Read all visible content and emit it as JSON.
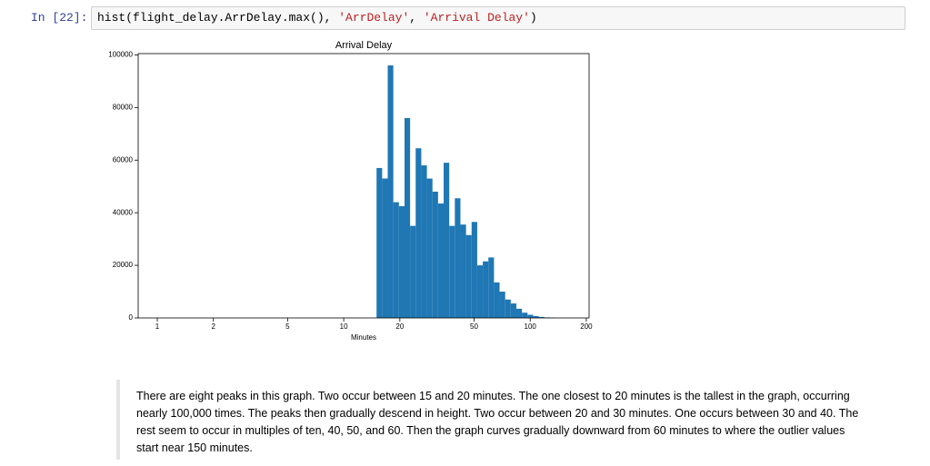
{
  "cell": {
    "prompt": "In [22]:",
    "code": [
      {
        "text": "hist(flight_delay.ArrDelay.max(), ",
        "kind": "plain"
      },
      {
        "text": "'ArrDelay'",
        "kind": "string"
      },
      {
        "text": ", ",
        "kind": "plain"
      },
      {
        "text": "'Arrival Delay'",
        "kind": "string"
      },
      {
        "text": ")",
        "kind": "plain"
      }
    ]
  },
  "chart_data": {
    "type": "histogram",
    "title": "Arrival Delay",
    "x_label": "Minutes",
    "color": "#1f77b4",
    "x_scale": "log",
    "bins": [
      15,
      16.07,
      17.22,
      18.45,
      19.77,
      21.19,
      22.7,
      24.32,
      26.06,
      27.93,
      29.92,
      32.06,
      34.35,
      36.81,
      39.44,
      42.26,
      45.28,
      48.52,
      51.99,
      55.7,
      59.69,
      63.95,
      68.53,
      73.43,
      78.68,
      84.3,
      90.33,
      96.79,
      103.7,
      111.1,
      119.1,
      127.6,
      136.7
    ],
    "counts": [
      57000,
      53000,
      96000,
      44000,
      42500,
      76000,
      35000,
      64500,
      58000,
      53000,
      48000,
      43500,
      59000,
      35000,
      45500,
      35500,
      31500,
      36500,
      20000,
      21500,
      23000,
      13500,
      10000,
      7000,
      5500,
      3500,
      2000,
      1200,
      700,
      400,
      200,
      100
    ],
    "xlim": [
      0.79,
      207
    ],
    "xticks": [
      1,
      2,
      5,
      10,
      20,
      50,
      100,
      200
    ],
    "ylim": [
      0,
      100500
    ],
    "yticks": [
      0,
      20000,
      40000,
      60000,
      80000,
      100000
    ]
  },
  "markdown": {
    "text": "There are eight peaks in this graph. Two occur between 15 and 20 minutes. The one closest to 20 minutes is the tallest in the graph, occurring nearly 100,000 times. The peaks then gradually descend in height. Two occur between 20 and 30 minutes. One occurs between 30 and 40. The rest seem to occur in multiples of ten, 40, 50, and 60. Then the graph curves gradually downward from 60 minutes to where the outlier values start near 150 minutes."
  }
}
